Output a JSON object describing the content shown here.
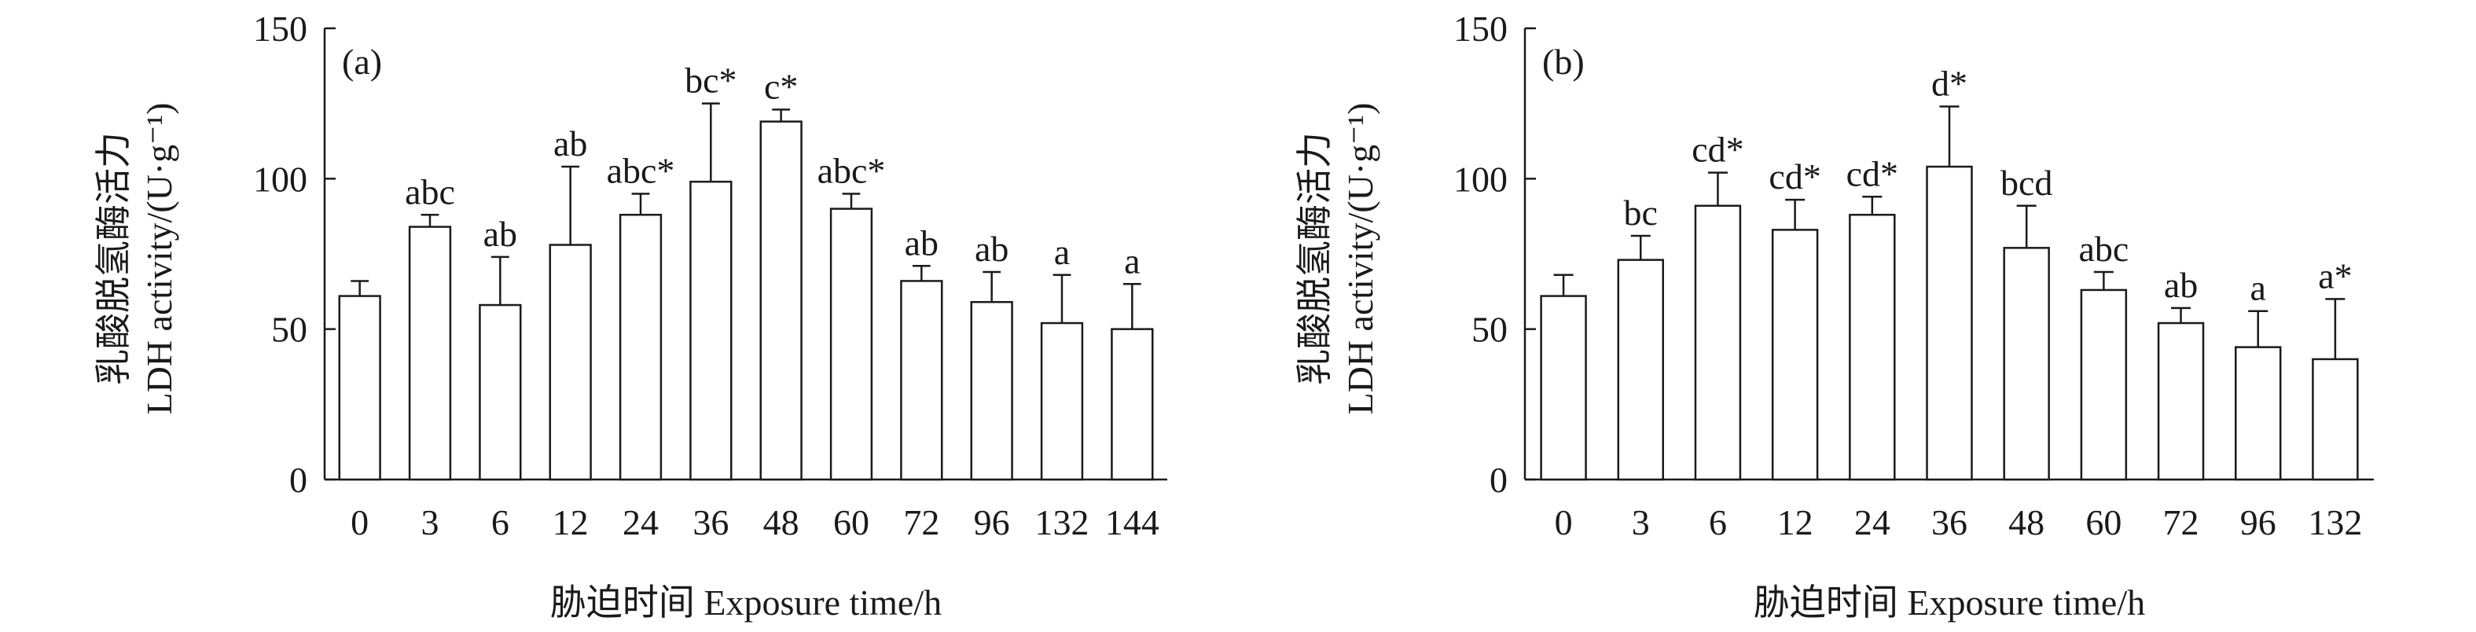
{
  "chart_data": [
    {
      "type": "bar",
      "panel_label": "(a)",
      "categories": [
        "0",
        "3",
        "6",
        "12",
        "24",
        "36",
        "48",
        "60",
        "72",
        "96",
        "132",
        "144"
      ],
      "values": [
        61,
        84,
        58,
        78,
        88,
        99,
        119,
        90,
        66,
        59,
        52,
        50
      ],
      "errors": [
        5,
        4,
        16,
        26,
        7,
        26,
        4,
        5,
        5,
        10,
        16,
        15
      ],
      "annotations": [
        "",
        "abc",
        "ab",
        "ab",
        "abc*",
        "bc*",
        "c*",
        "abc*",
        "ab",
        "ab",
        "a",
        "a"
      ],
      "xlabel": "胁迫时间 Exposure time/h",
      "ylabel_cn": "乳酸脱氢酶活力",
      "ylabel_en": "LDH activity/(U·g⁻¹)",
      "ylim": [
        0,
        150
      ],
      "yticks": [
        "0",
        "50",
        "100",
        "150"
      ],
      "grid": false,
      "bar_fill": "#ffffff",
      "bar_stroke": "#1a1a1a"
    },
    {
      "type": "bar",
      "panel_label": "(b)",
      "categories": [
        "0",
        "3",
        "6",
        "12",
        "24",
        "36",
        "48",
        "60",
        "72",
        "96",
        "132"
      ],
      "values": [
        61,
        73,
        91,
        83,
        88,
        104,
        77,
        63,
        52,
        44,
        40
      ],
      "errors": [
        7,
        8,
        11,
        10,
        6,
        20,
        14,
        6,
        5,
        12,
        20
      ],
      "annotations": [
        "",
        "bc",
        "cd*",
        "cd*",
        "cd*",
        "d*",
        "bcd",
        "abc",
        "ab",
        "a",
        "a*"
      ],
      "xlabel": "胁迫时间 Exposure time/h",
      "ylabel_cn": "乳酸脱氢酶活力",
      "ylabel_en": "LDH activity/(U·g⁻¹)",
      "ylim": [
        0,
        150
      ],
      "yticks": [
        "0",
        "50",
        "100",
        "150"
      ],
      "grid": false,
      "bar_fill": "#ffffff",
      "bar_stroke": "#1a1a1a"
    }
  ]
}
